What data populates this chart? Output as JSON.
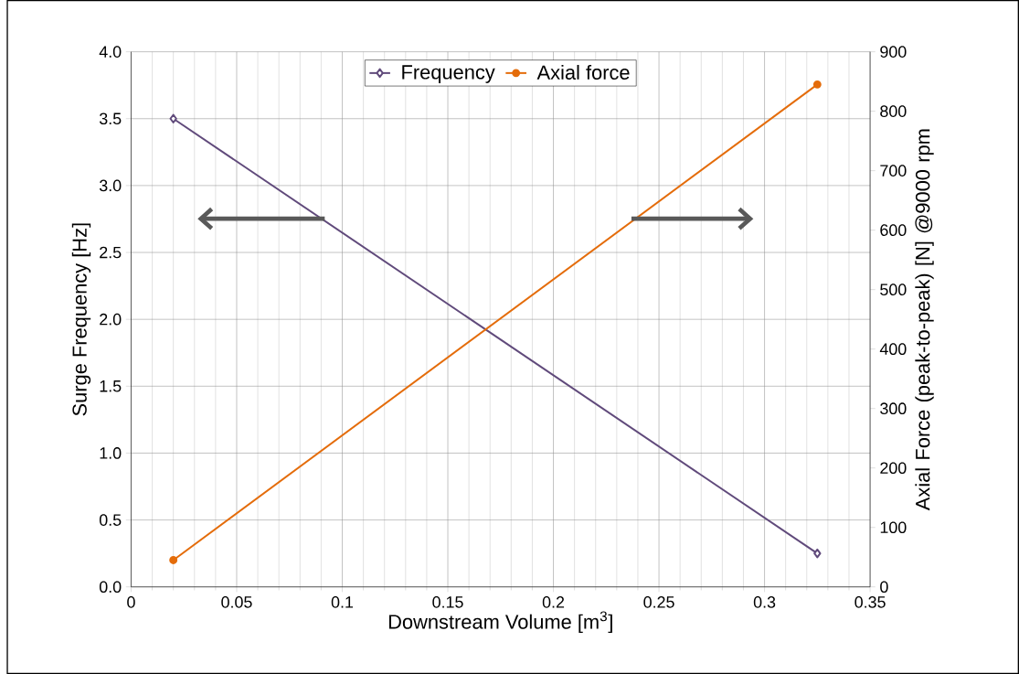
{
  "chart_data": {
    "type": "line",
    "xlabel": "Downstream Volume [m$^{3}$]",
    "ylabel": "Surge Frequency [Hz]",
    "y2label": "Axial Force (peak-to-peak) [N] @9000 rpm",
    "xlim": [
      0,
      0.35
    ],
    "xticks": [
      0,
      0.05,
      0.1,
      0.15,
      0.2,
      0.25,
      0.3,
      0.35
    ],
    "ylim": [
      0,
      4
    ],
    "yticks": [
      {
        "value": 0,
        "label": "0.0"
      },
      {
        "value": 0.5,
        "label": "0.5"
      },
      {
        "value": 1,
        "label": "1.0"
      },
      {
        "value": 1.5,
        "label": "1.5"
      },
      {
        "value": 2,
        "label": "2.0"
      },
      {
        "value": 2.5,
        "label": "2.5"
      },
      {
        "value": 3,
        "label": "3.0"
      },
      {
        "value": 3.5,
        "label": "3.5"
      },
      {
        "value": 4,
        "label": "4.0"
      }
    ],
    "y2lim": [
      0,
      900
    ],
    "y2ticks": [
      0,
      100,
      200,
      300,
      400,
      500,
      600,
      700,
      800,
      900
    ],
    "x": [
      0.02,
      0.325
    ],
    "grid": true,
    "legend": "top",
    "line_style": "solid",
    "series": [
      {
        "name": "Frequency",
        "color": "#604a7b",
        "marker": "diamond",
        "values": [
          3.5,
          0.25
        ]
      },
      {
        "name": "Axial force",
        "color": "#e46c0a",
        "marker": "circle",
        "axis": "y2",
        "values": [
          45,
          845
        ]
      }
    ]
  }
}
